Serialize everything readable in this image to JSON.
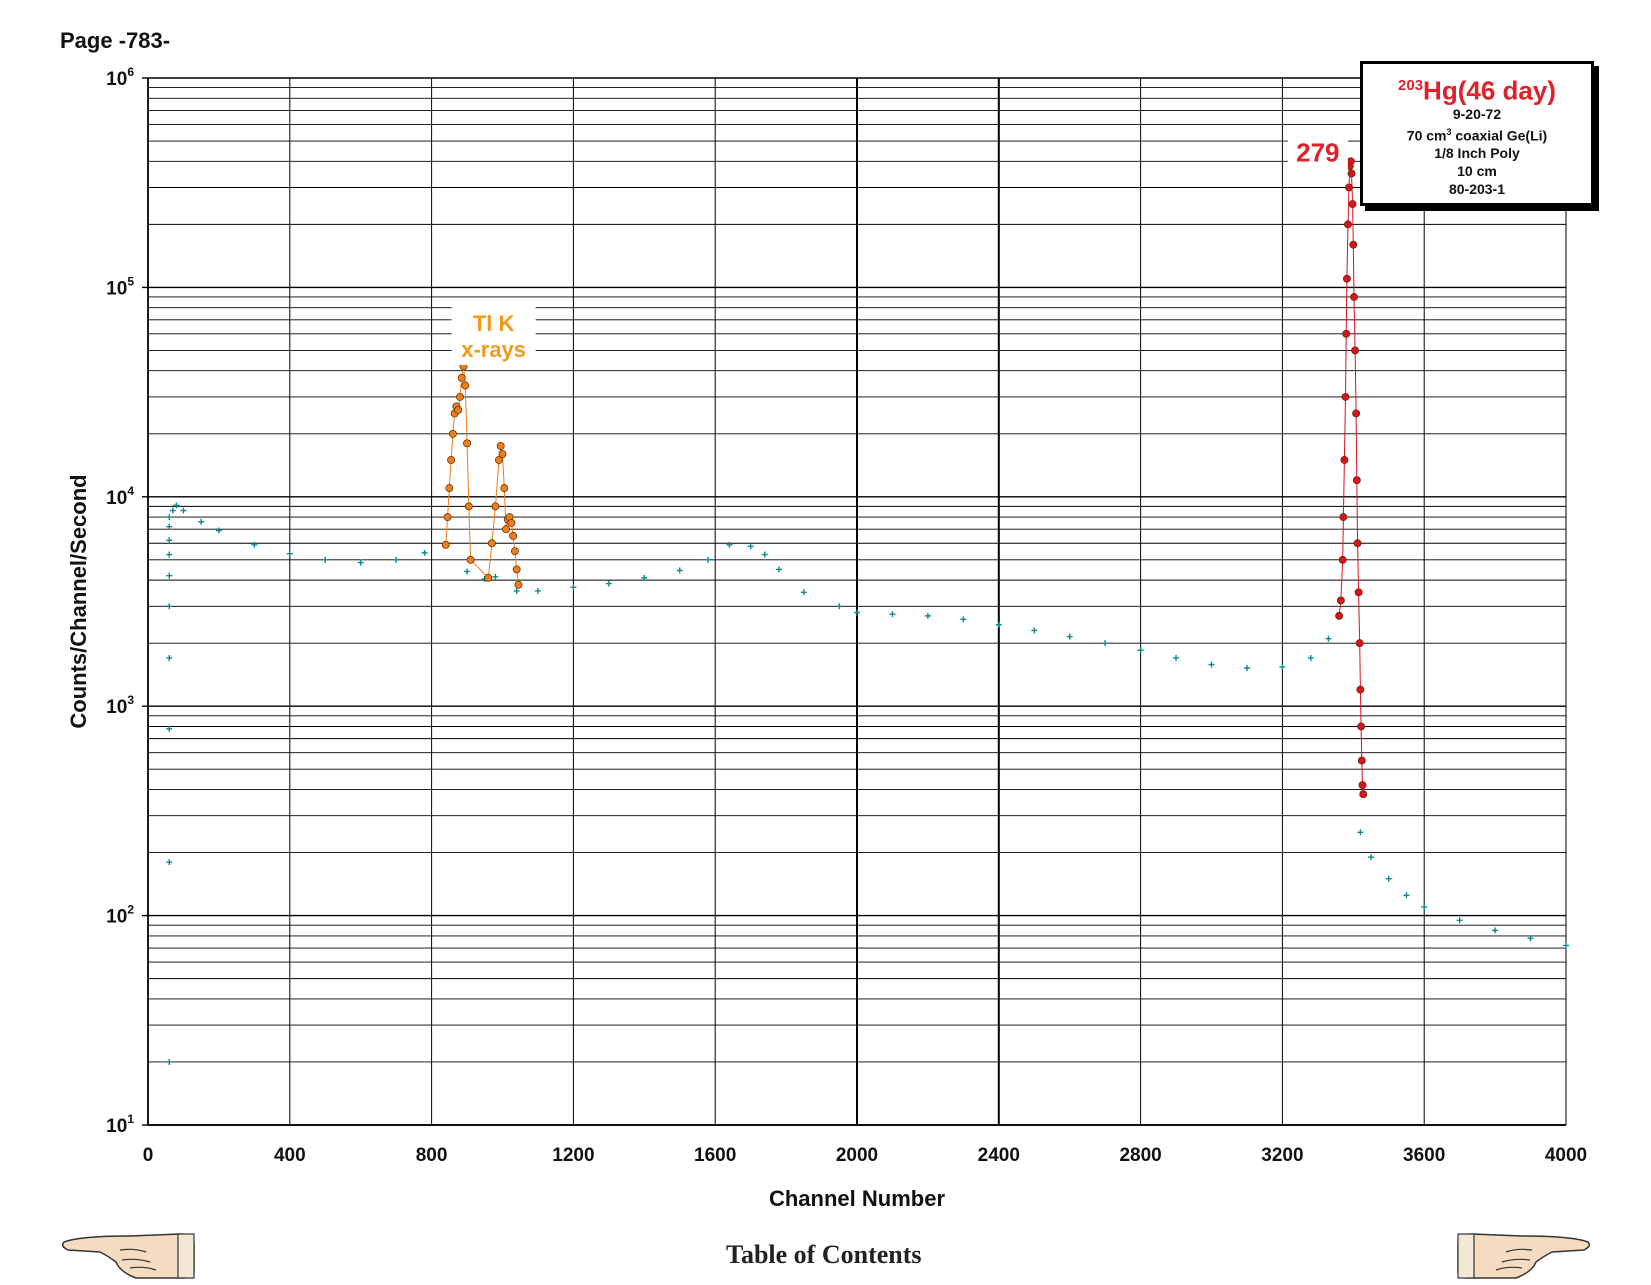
{
  "page": {
    "label": "Page -783-",
    "toc_link": "Table of Contents"
  },
  "info_box": {
    "mass_number": "203",
    "title_rest": "Hg(46 day)",
    "date": "9-20-72",
    "detector_pre": "70 cm",
    "detector_sup": "3",
    "detector_post": " coaxial Ge(Li)",
    "absorber": "1/8 Inch Poly",
    "distance": "10 cm",
    "id": "80-203-1"
  },
  "navigation": {
    "left_icon": "pointing-hand-left-icon",
    "right_icon": "pointing-hand-right-icon"
  },
  "chart_data": {
    "type": "scatter",
    "xlabel": "Channel Number",
    "ylabel": "Counts/Channel/Second",
    "xlim": [
      0,
      4000
    ],
    "ylim": [
      10,
      1000000
    ],
    "yscale": "log",
    "grid": true,
    "x_ticks": [
      "0",
      "400",
      "800",
      "1200",
      "1600",
      "2000",
      "2400",
      "2800",
      "3200",
      "3600",
      "4000"
    ],
    "y_ticks": [
      {
        "base": "10",
        "exp": "1",
        "value": 10
      },
      {
        "base": "10",
        "exp": "2",
        "value": 100
      },
      {
        "base": "10",
        "exp": "3",
        "value": 1000
      },
      {
        "base": "10",
        "exp": "4",
        "value": 10000
      },
      {
        "base": "10",
        "exp": "5",
        "value": 100000
      },
      {
        "base": "10",
        "exp": "6",
        "value": 1000000
      }
    ],
    "colors": {
      "background": "#0f8b8d",
      "xray": "#ef7d1a",
      "peak": "#d8141e",
      "label_xray": "#f39a1e",
      "label_peak": "#e0202a"
    },
    "annotations": [
      {
        "lines": [
          "Tl K",
          "x-rays"
        ],
        "x": 975,
        "y": 62000,
        "color": "#f39a1e"
      },
      {
        "lines": [
          "279"
        ],
        "x": 3300,
        "y": 400000,
        "color": "#e0202a"
      }
    ],
    "series": [
      {
        "role": "background",
        "points": [
          [
            60,
            20
          ],
          [
            60,
            180
          ],
          [
            60,
            780
          ],
          [
            60,
            1700
          ],
          [
            60,
            3000
          ],
          [
            60,
            4200
          ],
          [
            60,
            5300
          ],
          [
            60,
            6200
          ],
          [
            60,
            7200
          ],
          [
            60,
            8000
          ],
          [
            70,
            8600
          ],
          [
            80,
            9100
          ],
          [
            100,
            8600
          ],
          [
            150,
            7600
          ],
          [
            200,
            6900
          ],
          [
            300,
            5900
          ],
          [
            400,
            5350
          ],
          [
            500,
            5000
          ],
          [
            600,
            4850
          ],
          [
            700,
            5000
          ],
          [
            780,
            5400
          ],
          [
            840,
            5900
          ],
          [
            900,
            4400
          ],
          [
            950,
            4050
          ],
          [
            980,
            4150
          ],
          [
            1040,
            3550
          ],
          [
            1100,
            3550
          ],
          [
            1200,
            3700
          ],
          [
            1300,
            3850
          ],
          [
            1400,
            4100
          ],
          [
            1500,
            4450
          ],
          [
            1580,
            5000
          ],
          [
            1640,
            5900
          ],
          [
            1700,
            5800
          ],
          [
            1740,
            5300
          ],
          [
            1780,
            4500
          ],
          [
            1850,
            3500
          ],
          [
            1950,
            3000
          ],
          [
            2000,
            2800
          ],
          [
            2100,
            2750
          ],
          [
            2200,
            2700
          ],
          [
            2300,
            2600
          ],
          [
            2400,
            2450
          ],
          [
            2500,
            2300
          ],
          [
            2600,
            2150
          ],
          [
            2700,
            2000
          ],
          [
            2800,
            1850
          ],
          [
            2900,
            1700
          ],
          [
            3000,
            1580
          ],
          [
            3100,
            1520
          ],
          [
            3200,
            1540
          ],
          [
            3280,
            1700
          ],
          [
            3330,
            2100
          ],
          [
            3360,
            2700
          ],
          [
            3420,
            250
          ],
          [
            3450,
            190
          ],
          [
            3500,
            150
          ],
          [
            3550,
            125
          ],
          [
            3600,
            110
          ],
          [
            3700,
            95
          ],
          [
            3800,
            85
          ],
          [
            3900,
            78
          ],
          [
            4000,
            72
          ]
        ]
      },
      {
        "role": "xray",
        "points": [
          [
            840,
            5900
          ],
          [
            845,
            8000
          ],
          [
            850,
            11000
          ],
          [
            855,
            15000
          ],
          [
            860,
            20000
          ],
          [
            865,
            25000
          ],
          [
            870,
            27000
          ],
          [
            875,
            26000
          ],
          [
            880,
            30000
          ],
          [
            885,
            37000
          ],
          [
            890,
            42000
          ],
          [
            895,
            34000
          ],
          [
            900,
            18000
          ],
          [
            905,
            9000
          ],
          [
            910,
            5000
          ],
          [
            960,
            4100
          ],
          [
            970,
            6000
          ],
          [
            980,
            9000
          ],
          [
            990,
            15000
          ],
          [
            995,
            17500
          ],
          [
            1000,
            16000
          ],
          [
            1005,
            11000
          ],
          [
            1010,
            7000
          ],
          [
            1015,
            7800
          ],
          [
            1020,
            8000
          ],
          [
            1025,
            7500
          ],
          [
            1030,
            6500
          ],
          [
            1035,
            5500
          ],
          [
            1040,
            4500
          ],
          [
            1045,
            3800
          ]
        ]
      },
      {
        "role": "peak",
        "points": [
          [
            3360,
            2700
          ],
          [
            3365,
            3200
          ],
          [
            3370,
            5000
          ],
          [
            3372,
            8000
          ],
          [
            3375,
            15000
          ],
          [
            3378,
            30000
          ],
          [
            3380,
            60000
          ],
          [
            3382,
            110000
          ],
          [
            3385,
            200000
          ],
          [
            3388,
            300000
          ],
          [
            3390,
            380000
          ],
          [
            3393,
            400000
          ],
          [
            3395,
            350000
          ],
          [
            3398,
            250000
          ],
          [
            3400,
            160000
          ],
          [
            3402,
            90000
          ],
          [
            3405,
            50000
          ],
          [
            3408,
            25000
          ],
          [
            3410,
            12000
          ],
          [
            3412,
            6000
          ],
          [
            3415,
            3500
          ],
          [
            3418,
            2000
          ],
          [
            3420,
            1200
          ],
          [
            3422,
            800
          ],
          [
            3424,
            550
          ],
          [
            3426,
            420
          ],
          [
            3428,
            380
          ]
        ]
      }
    ]
  }
}
